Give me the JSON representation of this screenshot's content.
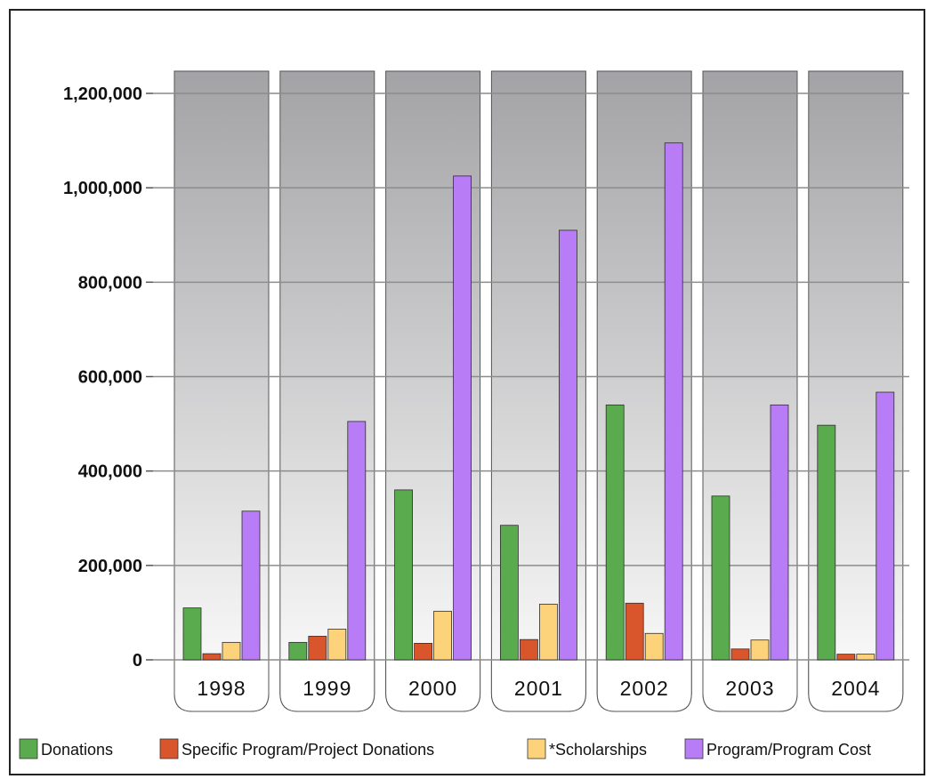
{
  "chart_data": {
    "type": "bar",
    "title": "",
    "xlabel": "",
    "ylabel": "",
    "categories": [
      "1998",
      "1999",
      "2000",
      "2001",
      "2002",
      "2003",
      "2004"
    ],
    "ylim": [
      0,
      1250000
    ],
    "yticks": [
      0,
      200000,
      400000,
      600000,
      800000,
      1000000,
      1200000
    ],
    "ytick_labels": [
      "0",
      "200,000",
      "400,000",
      "600,000",
      "800,000",
      "1,000,000",
      "1,200,000"
    ],
    "grid": true,
    "legend_position": "bottom",
    "series": [
      {
        "name": "Donations",
        "color": "#5aaa4e",
        "values": [
          110000,
          37000,
          360000,
          285000,
          540000,
          347000,
          497000
        ]
      },
      {
        "name": "Specific Program/Project Donations",
        "color": "#d9552b",
        "values": [
          13000,
          50000,
          35000,
          43000,
          120000,
          23000,
          12000
        ]
      },
      {
        "name": "*Scholarships",
        "color": "#fcd27a",
        "values": [
          37000,
          65000,
          103000,
          118000,
          56000,
          42000,
          12000
        ]
      },
      {
        "name": "Program/Program Cost",
        "color": "#b77cf6",
        "values": [
          315000,
          505000,
          1025000,
          910000,
          1095000,
          540000,
          567000
        ]
      }
    ]
  }
}
